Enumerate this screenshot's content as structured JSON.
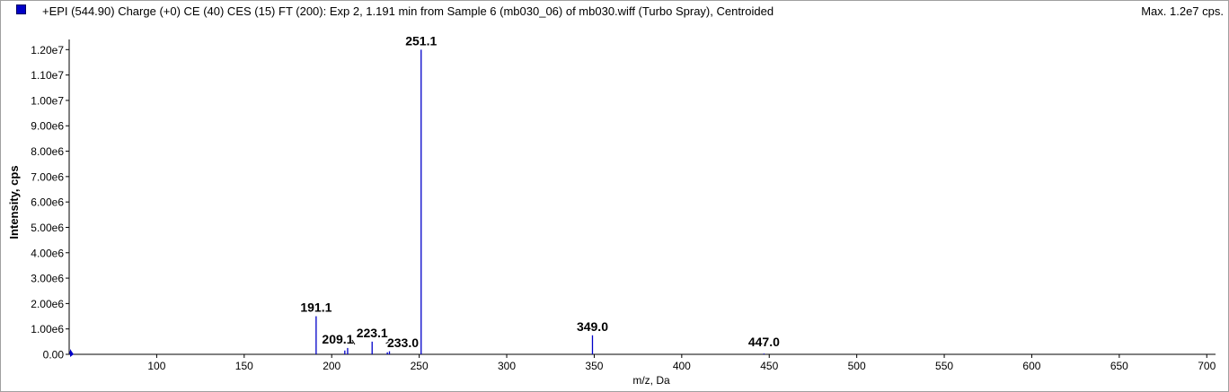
{
  "header": {
    "title": "+EPI (544.90) Charge (+0) CE (40) CES (15) FT (200): Exp 2, 1.191 min from Sample 6 (mb030_06) of mb030.wiff (Turbo Spray), Centroided",
    "max_label": "Max. 1.2e7 cps.",
    "series_color": "#0000c8"
  },
  "chart_data": {
    "type": "bar",
    "title": "+EPI (544.90) Charge (+0) CE (40) CES (15) FT (200): Exp 2, 1.191 min from Sample 6 (mb030_06) of mb030.wiff (Turbo Spray), Centroided",
    "xlabel": "m/z, Da",
    "ylabel": "Intensity, cps",
    "xlim": [
      50,
      705
    ],
    "ylim": [
      0,
      12400000
    ],
    "x_ticks": [
      100,
      150,
      200,
      250,
      300,
      350,
      400,
      450,
      500,
      550,
      600,
      650,
      700
    ],
    "x_tick_labels": [
      "100",
      "150",
      "200",
      "250",
      "300",
      "350",
      "400",
      "450",
      "500",
      "550",
      "600",
      "650",
      "700"
    ],
    "y_ticks": [
      0,
      1000000,
      2000000,
      3000000,
      4000000,
      5000000,
      6000000,
      7000000,
      8000000,
      9000000,
      10000000,
      11000000,
      12000000
    ],
    "y_tick_labels": [
      "0.00",
      "1.00e6",
      "2.00e6",
      "3.00e6",
      "4.00e6",
      "5.00e6",
      "6.00e6",
      "7.00e6",
      "8.00e6",
      "9.00e6",
      "1.00e7",
      "1.10e7",
      "1.20e7"
    ],
    "peaks": [
      {
        "mz": 50.5,
        "intensity": 120000
      },
      {
        "mz": 191.1,
        "intensity": 1500000
      },
      {
        "mz": 207.5,
        "intensity": 150000
      },
      {
        "mz": 209.1,
        "intensity": 250000
      },
      {
        "mz": 223.1,
        "intensity": 500000
      },
      {
        "mz": 231.8,
        "intensity": 80000
      },
      {
        "mz": 233.0,
        "intensity": 120000
      },
      {
        "mz": 251.1,
        "intensity": 12000000
      },
      {
        "mz": 349.0,
        "intensity": 750000
      },
      {
        "mz": 447.0,
        "intensity": 30000
      }
    ],
    "annotations": [
      {
        "text": "251.1",
        "mz": 251.1
      },
      {
        "text": "191.1",
        "mz": 191.1
      },
      {
        "text": "209.1",
        "mz": 209.1
      },
      {
        "text": "223.1",
        "mz": 223.1
      },
      {
        "text": "233.0",
        "mz": 233.0
      },
      {
        "text": "349.0",
        "mz": 349.0
      },
      {
        "text": "447.0",
        "mz": 447.0
      }
    ],
    "color": "#0000c8"
  }
}
